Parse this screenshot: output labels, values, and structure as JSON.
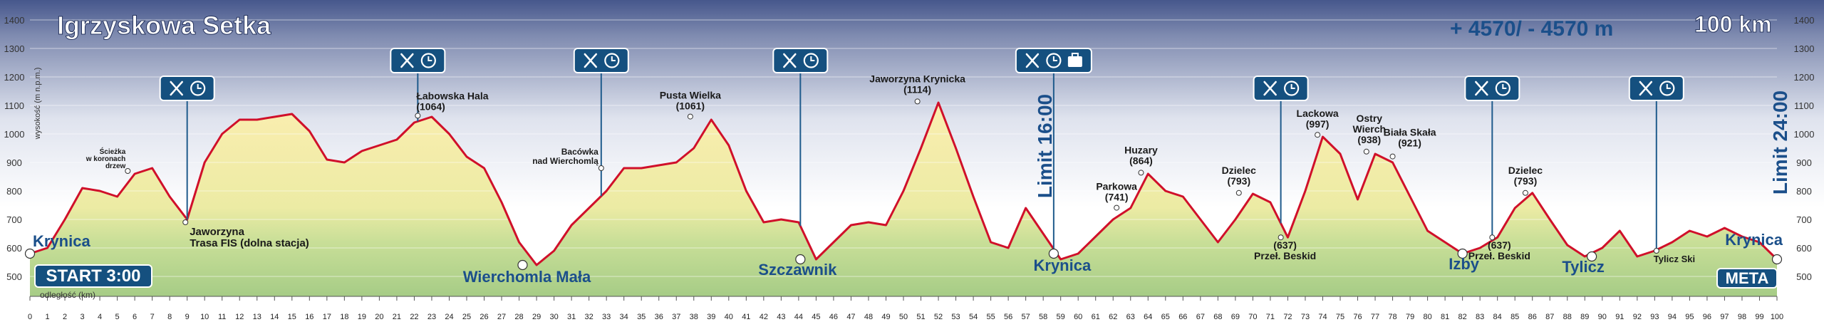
{
  "chart_data": {
    "type": "area",
    "title": "Igrzyskowa Setka",
    "elevation_gain": "+ 4570/ - 4570 m",
    "distance": "100 km",
    "start_label": "START 3:00",
    "finish_label": "META",
    "limits": [
      "Limit 16:00",
      "Limit 24:00"
    ],
    "ylabel": "wysokość (m n.p.m.)",
    "xlabel": "odległość (km)",
    "color": "#d0102a",
    "x": [
      0,
      1,
      2,
      3,
      4,
      5,
      6,
      7,
      8,
      9,
      10,
      11,
      12,
      13,
      14,
      15,
      16,
      17,
      18,
      19,
      20,
      21,
      22,
      23,
      24,
      25,
      26,
      27,
      28,
      29,
      30,
      31,
      32,
      33,
      34,
      35,
      36,
      37,
      38,
      39,
      40,
      41,
      42,
      43,
      44,
      45,
      46,
      47,
      48,
      49,
      50,
      51,
      52,
      53,
      54,
      55,
      56,
      57,
      58,
      59,
      60,
      61,
      62,
      63,
      64,
      65,
      66,
      67,
      68,
      69,
      70,
      71,
      72,
      73,
      74,
      75,
      76,
      77,
      78,
      79,
      80,
      81,
      82,
      83,
      84,
      85,
      86,
      87,
      88,
      89,
      90,
      91,
      92,
      93,
      94,
      95,
      96,
      97,
      98,
      99,
      100
    ],
    "values": [
      580,
      600,
      700,
      810,
      800,
      780,
      860,
      880,
      780,
      700,
      900,
      1000,
      1050,
      1050,
      1060,
      1070,
      1010,
      910,
      900,
      940,
      960,
      980,
      1040,
      1060,
      1000,
      920,
      880,
      760,
      620,
      540,
      590,
      680,
      740,
      800,
      880,
      880,
      890,
      900,
      950,
      1050,
      960,
      800,
      690,
      700,
      690,
      560,
      620,
      680,
      690,
      680,
      800,
      950,
      1110,
      950,
      780,
      620,
      600,
      740,
      650,
      560,
      580,
      640,
      700,
      740,
      860,
      800,
      780,
      700,
      620,
      700,
      790,
      760,
      637,
      800,
      990,
      930,
      770,
      930,
      900,
      780,
      660,
      620,
      580,
      600,
      637,
      740,
      793,
      700,
      610,
      570,
      600,
      660,
      570,
      590,
      620,
      660,
      640,
      670,
      640,
      620,
      560
    ],
    "xlim": [
      0,
      100
    ],
    "xticks": [
      0,
      1,
      2,
      3,
      4,
      5,
      6,
      7,
      8,
      9,
      10,
      11,
      12,
      13,
      14,
      15,
      16,
      17,
      18,
      19,
      20,
      21,
      22,
      23,
      24,
      25,
      26,
      27,
      28,
      29,
      30,
      31,
      32,
      33,
      34,
      35,
      36,
      37,
      38,
      39,
      40,
      41,
      42,
      43,
      44,
      45,
      46,
      47,
      48,
      49,
      50,
      51,
      52,
      53,
      54,
      55,
      56,
      57,
      58,
      59,
      60,
      61,
      62,
      63,
      64,
      65,
      66,
      67,
      68,
      69,
      70,
      71,
      72,
      73,
      74,
      75,
      76,
      77,
      78,
      79,
      80,
      81,
      82,
      83,
      84,
      85,
      86,
      87,
      88,
      89,
      90,
      91,
      92,
      93,
      94,
      95,
      96,
      97,
      98,
      99,
      100
    ],
    "ylim": [
      430,
      1450
    ],
    "yticks": [
      500,
      600,
      700,
      800,
      900,
      1000,
      1100,
      1200,
      1300,
      1400
    ],
    "grid": true,
    "towns": [
      {
        "x": 0,
        "y": 580,
        "label": "Krynica"
      },
      {
        "x": 28.2,
        "y": 540,
        "label": "Wierchomla Mała"
      },
      {
        "x": 44.1,
        "y": 560,
        "label": "Szczawnik"
      },
      {
        "x": 58.6,
        "y": 580,
        "label": "Krynica"
      },
      {
        "x": 82,
        "y": 580,
        "label": "Izby"
      },
      {
        "x": 89.4,
        "y": 570,
        "label": "Tylicz"
      },
      {
        "x": 100,
        "y": 560,
        "label": "Krynica"
      }
    ],
    "annotations": [
      {
        "x": 5.6,
        "y": 870,
        "lines": [
          "Ścieżka",
          "w koronach",
          "drzew"
        ]
      },
      {
        "x": 22.2,
        "y": 1064,
        "lines": [
          "Łabowska Hala"
        ],
        "value_label": "(1064)"
      },
      {
        "x": 32.7,
        "y": 880,
        "lines": [
          "Bacówka",
          "nad Wierchomlą"
        ]
      },
      {
        "x": 37.8,
        "y": 1061,
        "lines": [
          "Pusta Wielka"
        ],
        "value_label": "(1061)"
      },
      {
        "x": 50.8,
        "y": 1114,
        "lines": [
          "Jaworzyna Krynicka"
        ],
        "value_label": "(1114)"
      },
      {
        "x": 62.2,
        "y": 741,
        "lines": [
          "Parkowa"
        ],
        "value_label": "(741)"
      },
      {
        "x": 63.6,
        "y": 864,
        "lines": [
          "Huzary"
        ],
        "value_label": "(864)"
      },
      {
        "x": 69.2,
        "y": 793,
        "lines": [
          "Dzielec"
        ],
        "value_label": "(793)"
      },
      {
        "x": 71.6,
        "y": 637,
        "lines": [
          "Przeł. Beskid"
        ],
        "value_label": "(637)"
      },
      {
        "x": 73.7,
        "y": 997,
        "lines": [
          "Lackowa"
        ],
        "value_label": "(997)"
      },
      {
        "x": 76.5,
        "y": 938,
        "lines": [
          "Ostry",
          "Wierch"
        ],
        "value_label": "(938)"
      },
      {
        "x": 78,
        "y": 921,
        "lines": [
          "Biała Skała"
        ],
        "value_label": "(921)"
      },
      {
        "x": 83.7,
        "y": 637,
        "lines": [
          "Przeł. Beskid"
        ],
        "value_label": "(637)"
      },
      {
        "x": 85.6,
        "y": 793,
        "lines": [
          "Dzielec"
        ],
        "value_label": "(793)"
      },
      {
        "x": 93.1,
        "y": 590,
        "lines": [
          "Tylicz Ski"
        ]
      },
      {
        "x": 8.9,
        "y": 690,
        "lines": [
          "Jaworzyna",
          "Trasa FIS (dolna stacja)"
        ]
      }
    ],
    "aid_stations": [
      {
        "x": 9,
        "icons": [
          "food",
          "clock"
        ]
      },
      {
        "x": 22.2,
        "icons": [
          "food",
          "clock"
        ]
      },
      {
        "x": 32.7,
        "icons": [
          "food",
          "clock"
        ]
      },
      {
        "x": 44.1,
        "icons": [
          "food",
          "clock"
        ]
      },
      {
        "x": 58.6,
        "icons": [
          "food",
          "clock",
          "bag"
        ]
      },
      {
        "x": 71.6,
        "icons": [
          "food",
          "clock"
        ]
      },
      {
        "x": 83.7,
        "icons": [
          "food",
          "clock"
        ]
      },
      {
        "x": 93.1,
        "icons": [
          "food",
          "clock"
        ]
      }
    ]
  }
}
